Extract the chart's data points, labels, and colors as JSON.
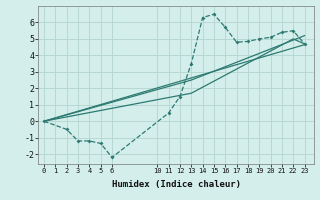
{
  "xlabel": "Humidex (Indice chaleur)",
  "bg_color": "#d4eeeb",
  "grid_color": "#b8d8d4",
  "line_color": "#2d7a72",
  "xlim": [
    -0.5,
    23.8
  ],
  "ylim": [
    -2.6,
    7.0
  ],
  "xticks_left": [
    0,
    1,
    2,
    3,
    4,
    5,
    6
  ],
  "xticks_right": [
    10,
    11,
    12,
    13,
    14,
    15,
    16,
    17,
    18,
    19,
    20,
    21,
    22,
    23
  ],
  "yticks": [
    -2,
    -1,
    0,
    1,
    2,
    3,
    4,
    5,
    6
  ],
  "curve1_x": [
    0,
    2,
    3,
    4,
    5,
    6,
    11,
    12,
    13,
    14,
    15,
    16,
    17,
    18,
    19,
    20,
    21,
    22,
    23
  ],
  "curve1_y": [
    0,
    -0.5,
    -1.2,
    -1.2,
    -1.35,
    -2.2,
    0.5,
    1.5,
    3.5,
    6.3,
    6.5,
    5.7,
    4.8,
    4.85,
    5.0,
    5.1,
    5.4,
    5.5,
    4.7
  ],
  "line1_x": [
    0,
    23
  ],
  "line1_y": [
    0,
    4.65
  ],
  "line2_x": [
    0,
    13,
    23
  ],
  "line2_y": [
    0,
    2.5,
    5.2
  ],
  "line3_x": [
    0,
    13,
    22,
    23
  ],
  "line3_y": [
    0,
    1.7,
    5.0,
    4.7
  ]
}
